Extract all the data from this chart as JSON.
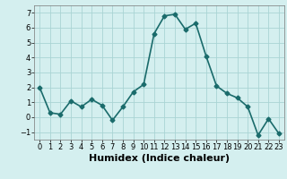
{
  "x": [
    0,
    1,
    2,
    3,
    4,
    5,
    6,
    7,
    8,
    9,
    10,
    11,
    12,
    13,
    14,
    15,
    16,
    17,
    18,
    19,
    20,
    21,
    22,
    23
  ],
  "y": [
    2.0,
    0.3,
    0.2,
    1.1,
    0.7,
    1.2,
    0.8,
    -0.2,
    0.7,
    1.7,
    2.2,
    5.6,
    6.8,
    6.9,
    5.9,
    6.3,
    4.1,
    2.1,
    1.6,
    1.3,
    0.7,
    -1.2,
    -0.1,
    -1.1
  ],
  "line_color": "#1a6b6b",
  "marker": "D",
  "marker_size": 2.5,
  "bg_color": "#d4efef",
  "grid_color": "#aad4d4",
  "xlabel": "Humidex (Indice chaleur)",
  "xlim": [
    -0.5,
    23.5
  ],
  "ylim": [
    -1.5,
    7.5
  ],
  "yticks": [
    -1,
    0,
    1,
    2,
    3,
    4,
    5,
    6,
    7
  ],
  "xticks": [
    0,
    1,
    2,
    3,
    4,
    5,
    6,
    7,
    8,
    9,
    10,
    11,
    12,
    13,
    14,
    15,
    16,
    17,
    18,
    19,
    20,
    21,
    22,
    23
  ],
  "tick_label_size": 6,
  "xlabel_size": 8,
  "line_width": 1.2
}
